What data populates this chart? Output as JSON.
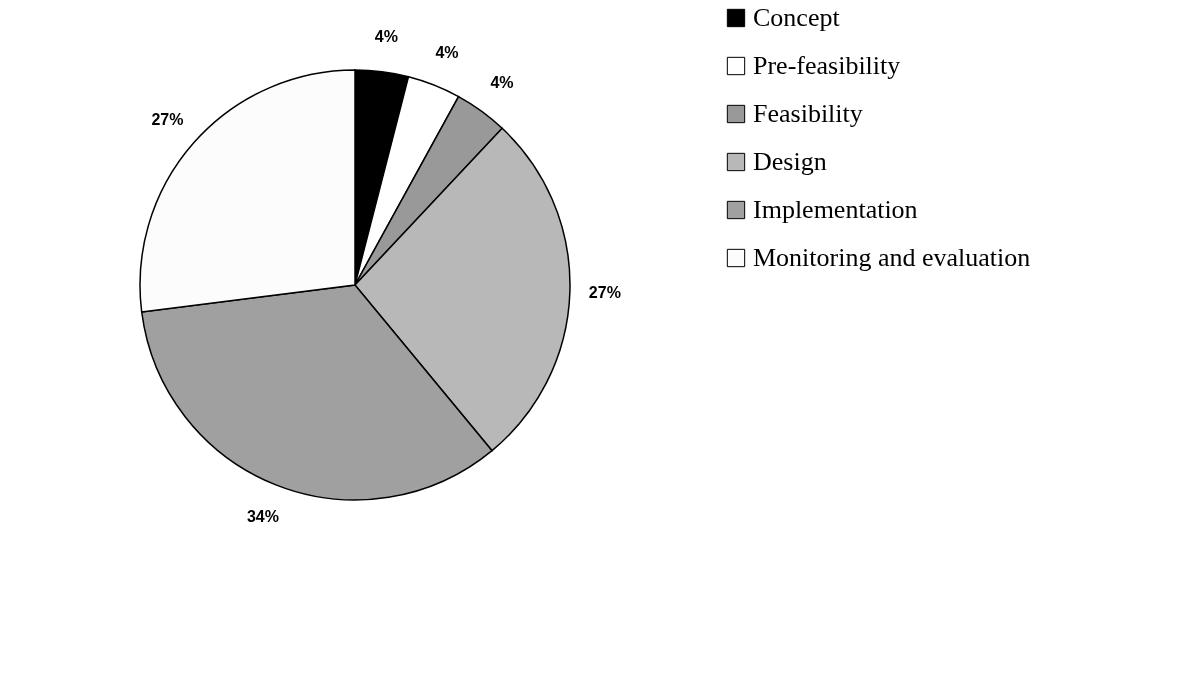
{
  "chart_data": {
    "type": "pie",
    "categories": [
      "Concept",
      "Pre-feasibility",
      "Feasibility",
      "Design",
      "Implementation",
      "Monitoring and evaluation"
    ],
    "values": [
      4,
      4,
      4,
      27,
      34,
      27
    ],
    "value_labels": [
      "4%",
      "4%",
      "4%",
      "27%",
      "34%",
      "27%"
    ],
    "colors": [
      "#000000",
      "#ffffff",
      "#999999",
      "#b8b8b8",
      "#a0a0a0",
      "#fcfcfc"
    ],
    "legend": "right"
  }
}
